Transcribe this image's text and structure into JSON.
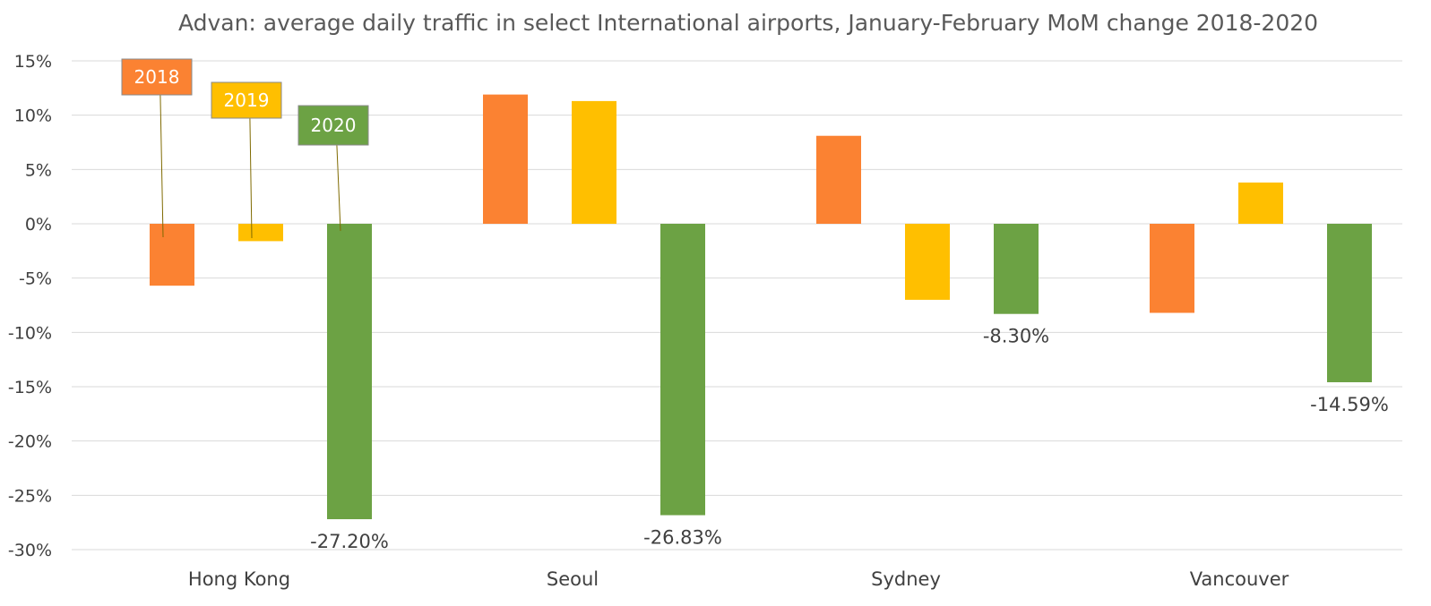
{
  "chart_data": {
    "type": "bar",
    "title": "Advan: average daily traffic in select International airports, January-February MoM change 2018-2020",
    "categories": [
      "Hong Kong",
      "Seoul",
      "Sydney",
      "Vancouver"
    ],
    "series": [
      {
        "name": "2018",
        "color": "#fb8232",
        "values": [
          -5.7,
          11.9,
          8.1,
          -8.2
        ]
      },
      {
        "name": "2019",
        "color": "#ffbf00",
        "values": [
          -1.6,
          11.3,
          -7.0,
          3.8
        ]
      },
      {
        "name": "2020",
        "color": "#6ca244",
        "values": [
          -27.2,
          -26.83,
          -8.3,
          -14.59
        ]
      }
    ],
    "ylim": [
      -30,
      15
    ],
    "yticks": [
      15,
      10,
      5,
      0,
      -5,
      -10,
      -15,
      -20,
      -25,
      -30
    ],
    "ytick_labels": [
      "15%",
      "10%",
      "5%",
      "0%",
      "-5%",
      "-10%",
      "-15%",
      "-20%",
      "-25%",
      "-30%"
    ],
    "data_labels": [
      {
        "series": 2,
        "index": 0,
        "text": "-27.20%"
      },
      {
        "series": 2,
        "index": 1,
        "text": "-26.83%"
      },
      {
        "series": 2,
        "index": 2,
        "text": "-8.30%"
      },
      {
        "series": 2,
        "index": 3,
        "text": "-14.59%"
      }
    ],
    "legend": "callouts",
    "grid": true,
    "xlabel": "",
    "ylabel": ""
  }
}
